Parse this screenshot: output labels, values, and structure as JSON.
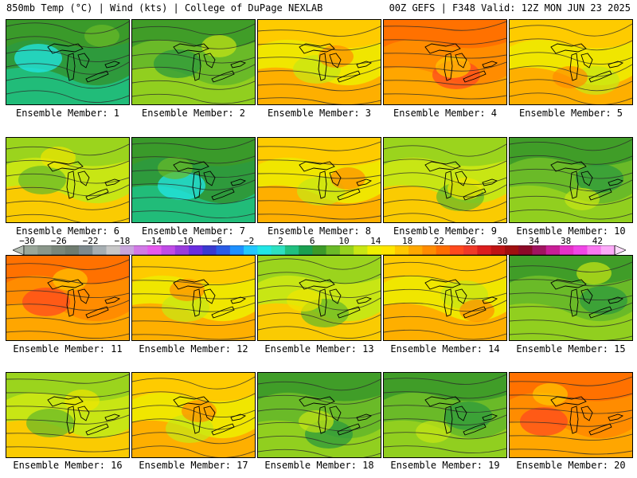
{
  "header": {
    "left": "850mb Temp (°C) | Wind (kts) | College of DuPage NEXLAB",
    "right": "00Z GEFS | F348 Valid: 12Z MON JUN 23 2025"
  },
  "legend": {
    "ticks": [
      "−30",
      "−26",
      "−22",
      "−18",
      "−14",
      "−10",
      "−6",
      "−2",
      "2",
      "6",
      "10",
      "14",
      "18",
      "22",
      "26",
      "30",
      "34",
      "38",
      "42"
    ],
    "colors": [
      "#9aa79a",
      "#8a978a",
      "#7a877a",
      "#6f7c70",
      "#7e8a8e",
      "#a6aeb2",
      "#c8c8c8",
      "#c9a6dc",
      "#d27ae6",
      "#e65aee",
      "#c04ce6",
      "#9a3cdc",
      "#6a2ee0",
      "#3a3ad0",
      "#2b5ce6",
      "#1e90ff",
      "#22c8ff",
      "#22e6e6",
      "#2ee0c0",
      "#20c080",
      "#1aa050",
      "#3c9a28",
      "#6aba28",
      "#96d21e",
      "#c8e614",
      "#f0f000",
      "#ffe600",
      "#ffc800",
      "#ffa800",
      "#ff8c00",
      "#ff6e00",
      "#ff4a1e",
      "#f03a28",
      "#dc1e1e",
      "#c01414",
      "#a01010",
      "#8c0a28",
      "#a01460",
      "#c81e96",
      "#e632c8",
      "#f046e6",
      "#fa78f0",
      "#fcaaf8"
    ]
  },
  "panels": [
    {
      "label": "Ensemble Member: 1",
      "theme": "cool"
    },
    {
      "label": "Ensemble Member: 2",
      "theme": "green"
    },
    {
      "label": "Ensemble Member: 3",
      "theme": "warm"
    },
    {
      "label": "Ensemble Member: 4",
      "theme": "hot"
    },
    {
      "label": "Ensemble Member: 5",
      "theme": "warm"
    },
    {
      "label": "Ensemble Member: 6",
      "theme": "mixed"
    },
    {
      "label": "Ensemble Member: 7",
      "theme": "cool"
    },
    {
      "label": "Ensemble Member: 8",
      "theme": "warm"
    },
    {
      "label": "Ensemble Member: 9",
      "theme": "mixed"
    },
    {
      "label": "Ensemble Member: 10",
      "theme": "green"
    },
    {
      "label": "Ensemble Member: 11",
      "theme": "hot"
    },
    {
      "label": "Ensemble Member: 12",
      "theme": "warm"
    },
    {
      "label": "Ensemble Member: 13",
      "theme": "mixed"
    },
    {
      "label": "Ensemble Member: 14",
      "theme": "warm"
    },
    {
      "label": "Ensemble Member: 15",
      "theme": "green"
    },
    {
      "label": "Ensemble Member: 16",
      "theme": "mixed"
    },
    {
      "label": "Ensemble Member: 17",
      "theme": "warm"
    },
    {
      "label": "Ensemble Member: 18",
      "theme": "green"
    },
    {
      "label": "Ensemble Member: 19",
      "theme": "green"
    },
    {
      "label": "Ensemble Member: 20",
      "theme": "hot"
    }
  ]
}
